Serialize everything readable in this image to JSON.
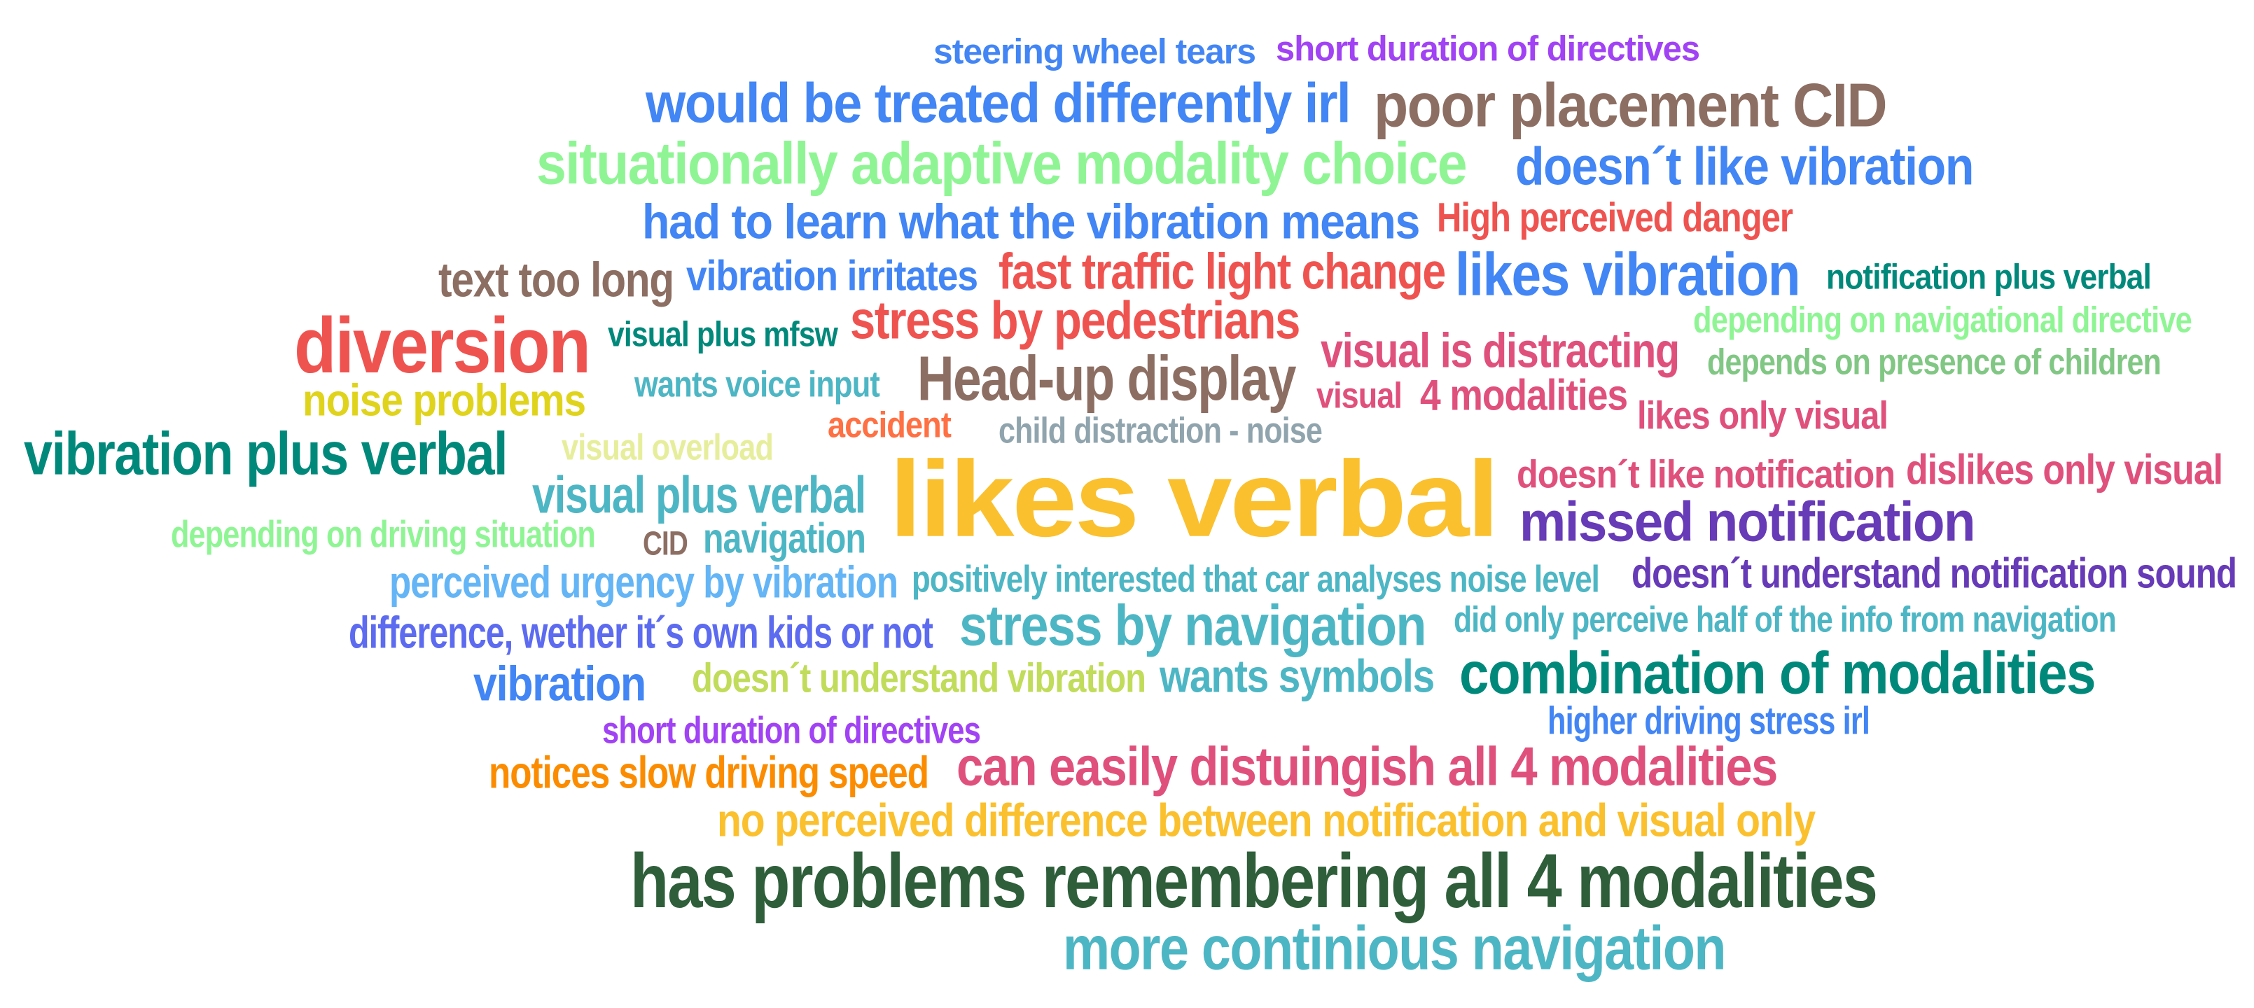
{
  "words": [
    {
      "text": "steering wheel tears",
      "color": "#4285f4"
    },
    {
      "text": "short duration of directives",
      "color": "#a142f4"
    },
    {
      "text": "would be treated differently irl",
      "color": "#4285f4"
    },
    {
      "text": "poor placement CID",
      "color": "#8d6e63"
    },
    {
      "text": "situationally adaptive modality choice",
      "color": "#8ff594"
    },
    {
      "text": "doesn´t like vibration",
      "color": "#4285f4"
    },
    {
      "text": "had to learn what the vibration means",
      "color": "#4285f4"
    },
    {
      "text": "High perceived danger",
      "color": "#ef5350"
    },
    {
      "text": "text too long",
      "color": "#8d6e63"
    },
    {
      "text": "vibration irritates",
      "color": "#4285f4"
    },
    {
      "text": "fast traffic light change",
      "color": "#ef5350"
    },
    {
      "text": "likes vibration",
      "color": "#4285f4"
    },
    {
      "text": "notification plus verbal",
      "color": "#00897b"
    },
    {
      "text": "depending on navigational directive",
      "color": "#8ff594"
    },
    {
      "text": "diversion",
      "color": "#ef5350"
    },
    {
      "text": "visual plus mfsw",
      "color": "#00897b"
    },
    {
      "text": "stress by pedestrians",
      "color": "#ef5350"
    },
    {
      "text": "visual is distracting",
      "color": "#e0507c"
    },
    {
      "text": "depends on presence of children",
      "color": "#81c784"
    },
    {
      "text": "noise problems",
      "color": "#e0d31c"
    },
    {
      "text": "wants voice input",
      "color": "#4db6c4"
    },
    {
      "text": "Head-up display",
      "color": "#8d6e63"
    },
    {
      "text": "visual",
      "color": "#e0507c"
    },
    {
      "text": "4 modalities",
      "color": "#e0507c"
    },
    {
      "text": "likes only visual",
      "color": "#e0507c"
    },
    {
      "text": "accident",
      "color": "#ff7043"
    },
    {
      "text": "child distraction - noise",
      "color": "#90a4ae"
    },
    {
      "text": "vibration plus verbal",
      "color": "#00897b"
    },
    {
      "text": "visual overload",
      "color": "#e6ee9c"
    },
    {
      "text": "visual plus verbal",
      "color": "#4db6c4"
    },
    {
      "text": "likes verbal",
      "color": "#fbc02d"
    },
    {
      "text": "doesn´t like notification",
      "color": "#e0507c"
    },
    {
      "text": "dislikes only visual",
      "color": "#e0507c"
    },
    {
      "text": "missed notification",
      "color": "#673ab7"
    },
    {
      "text": "depending on driving situation",
      "color": "#8ff594"
    },
    {
      "text": "CID",
      "color": "#8d6e63"
    },
    {
      "text": "navigation",
      "color": "#4db6c4"
    },
    {
      "text": "perceived urgency by vibration",
      "color": "#64b5f6"
    },
    {
      "text": "positively interested that car analyses noise level",
      "color": "#4db6c4"
    },
    {
      "text": "doesn´t understand notification sound",
      "color": "#673ab7"
    },
    {
      "text": "difference, wether it´s own kids or not",
      "color": "#5c6bef"
    },
    {
      "text": "stress by navigation",
      "color": "#4db6c4"
    },
    {
      "text": "did only perceive half of the info from navigation",
      "color": "#4db6c4"
    },
    {
      "text": "vibration",
      "color": "#4285f4"
    },
    {
      "text": "doesn´t understand vibration",
      "color": "#c0dc5a"
    },
    {
      "text": "wants symbols",
      "color": "#4db6c4"
    },
    {
      "text": "combination of modalities",
      "color": "#00897b"
    },
    {
      "text": "short duration of directives",
      "color": "#a142f4"
    },
    {
      "text": "higher driving stress irl",
      "color": "#4285f4"
    },
    {
      "text": "notices slow driving speed",
      "color": "#fb8c00"
    },
    {
      "text": "can easily distuingish all 4 modalities",
      "color": "#e0507c"
    },
    {
      "text": "no perceived difference between notification and visual only",
      "color": "#fbc02d"
    },
    {
      "text": "has problems remembering all 4 modalities",
      "color": "#2e5e3a"
    },
    {
      "text": "more continious navigation",
      "color": "#4db6c4"
    }
  ]
}
